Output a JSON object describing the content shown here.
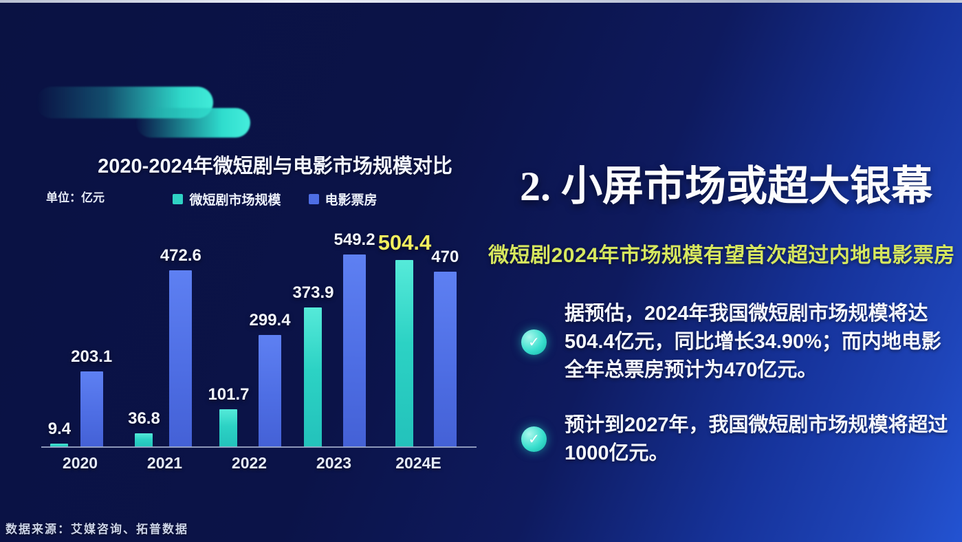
{
  "chart_data": {
    "type": "bar",
    "title": "2020-2024年微短剧与电影市场规模对比",
    "unit_label": "单位：亿元",
    "categories": [
      "2020",
      "2021",
      "2022",
      "2023",
      "2024E"
    ],
    "series": [
      {
        "name": "微短剧市场规模",
        "color": "#2fd2c4",
        "values": [
          9.4,
          36.8,
          101.7,
          373.9,
          504.4
        ],
        "labels": [
          "9.4",
          "36.8",
          "101.7",
          "373.9",
          "504.4"
        ]
      },
      {
        "name": "电影票房",
        "color": "#4e6ee4",
        "values": [
          203.1,
          472.6,
          299.4,
          549.2,
          470
        ],
        "labels": [
          "203.1",
          "472.6",
          "299.4",
          "549.2",
          "470"
        ]
      }
    ],
    "highlight": {
      "series": 0,
      "index": 4,
      "color": "#f3ef5e"
    },
    "ylim": [
      0,
      580
    ],
    "xlabel": "",
    "ylabel": "亿元",
    "grid": false,
    "legend_position": "top"
  },
  "right": {
    "heading": "2. 小屏市场或超大银幕",
    "subtitle": "微短剧2024年市场规模有望首次超过内地电影票房",
    "check_icon": "✓",
    "bullets": [
      "据预估，2024年我国微短剧市场规模将达504.4亿元，同比增长34.90%；而内地电影全年总票房预计为470亿元。",
      "预计到2027年，我国微短剧市场规模将超过1000亿元。"
    ]
  },
  "footer": {
    "source": "数据来源：艾媒咨询、拓普数据"
  },
  "colors": {
    "background_left": "#0b1348",
    "background_right": "#2353d2",
    "accent_teal": "#2fd8c9",
    "bar_teal": "#2fd2c4",
    "bar_blue": "#4e6ee4",
    "highlight_yellow": "#f3ef5e",
    "subtitle_yellow_green": "#d6e75e",
    "top_strip": "#cfd5e4"
  }
}
